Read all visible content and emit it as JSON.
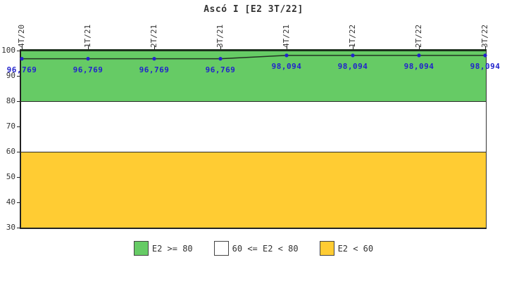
{
  "chart_data": {
    "type": "line",
    "title": "Ascó I [E2 3T/22]",
    "categories": [
      "4T/20",
      "1T/21",
      "2T/21",
      "3T/21",
      "4T/21",
      "1T/22",
      "2T/22",
      "3T/22"
    ],
    "series": [
      {
        "name": "E2",
        "values": [
          96.769,
          96.769,
          96.769,
          96.769,
          98.094,
          98.094,
          98.094,
          98.094
        ]
      }
    ],
    "value_labels": [
      "96,769",
      "96,769",
      "96,769",
      "96,769",
      "98,094",
      "98,094",
      "98,094",
      "98,094"
    ],
    "ylim": [
      30,
      100
    ],
    "yticks": [
      100,
      90,
      80,
      70,
      60,
      50,
      40,
      30
    ],
    "grid": false,
    "legend_position": "bottom",
    "bands": [
      {
        "label": "E2 >= 80",
        "from": 80,
        "to": 100,
        "color": "#66CB65"
      },
      {
        "label": "60 <= E2 < 80",
        "from": 60,
        "to": 80,
        "color": "#FFFFFF"
      },
      {
        "label": "E2 < 60",
        "from": 30,
        "to": 60,
        "color": "#FFCC33"
      }
    ],
    "colors": {
      "line": "#233323",
      "marker": "#2222CC",
      "value_label": "#2222CC",
      "axis": "#222222",
      "text": "#333333"
    }
  }
}
